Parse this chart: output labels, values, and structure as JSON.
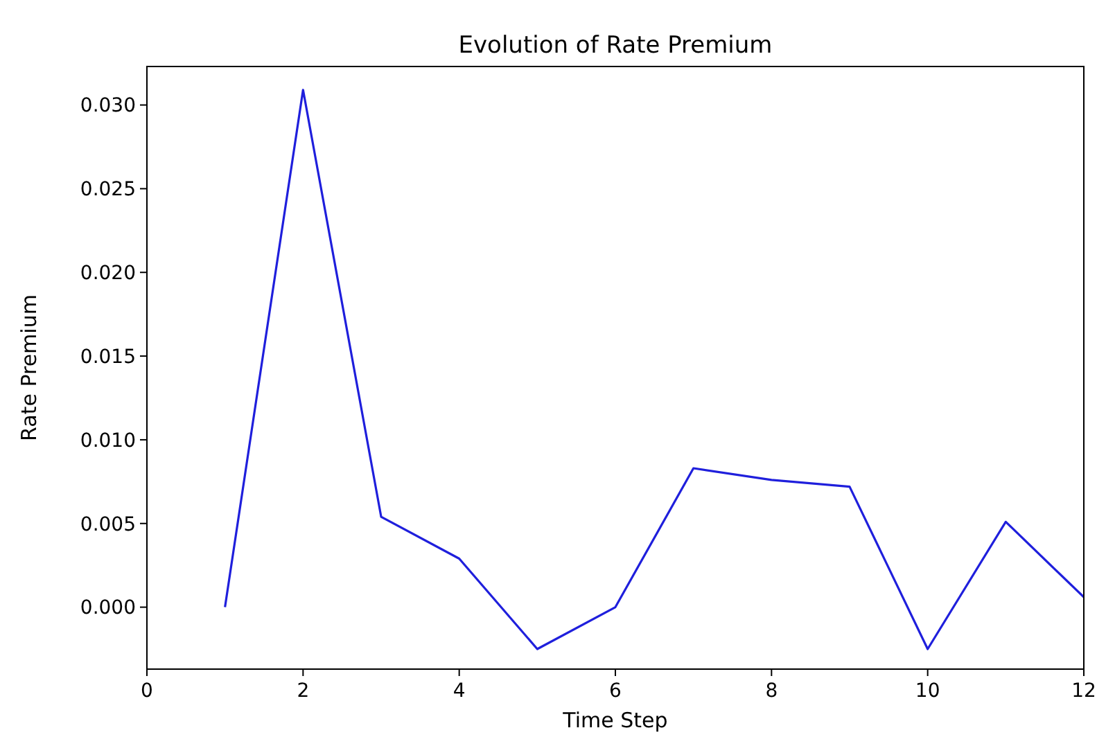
{
  "chart_data": {
    "type": "line",
    "title": "Evolution of Rate Premium",
    "xlabel": "Time Step",
    "ylabel": "Rate Premium",
    "x": [
      1,
      2,
      3,
      4,
      5,
      6,
      7,
      8,
      9,
      10,
      11,
      12
    ],
    "series": [
      {
        "color": "#1f1fdc",
        "values": [
          0.0,
          0.0309,
          0.0054,
          0.0029,
          -0.0025,
          0.0,
          0.0083,
          0.0076,
          0.0072,
          -0.0025,
          0.0051,
          0.0006
        ]
      }
    ],
    "xlim": [
      0,
      12
    ],
    "xticks": [
      0,
      2,
      4,
      6,
      8,
      10,
      12
    ],
    "ylim": [
      -0.0037,
      0.0323
    ],
    "yticks": [
      {
        "value": 0,
        "label": "0.000"
      },
      {
        "value": 0.005,
        "label": "0.005"
      },
      {
        "value": 0.01,
        "label": "0.010"
      },
      {
        "value": 0.015,
        "label": "0.015"
      },
      {
        "value": 0.02,
        "label": "0.020"
      },
      {
        "value": 0.025,
        "label": "0.025"
      },
      {
        "value": 0.03,
        "label": "0.030"
      }
    ],
    "grid": false,
    "marker": "none",
    "line_style": "solid"
  }
}
